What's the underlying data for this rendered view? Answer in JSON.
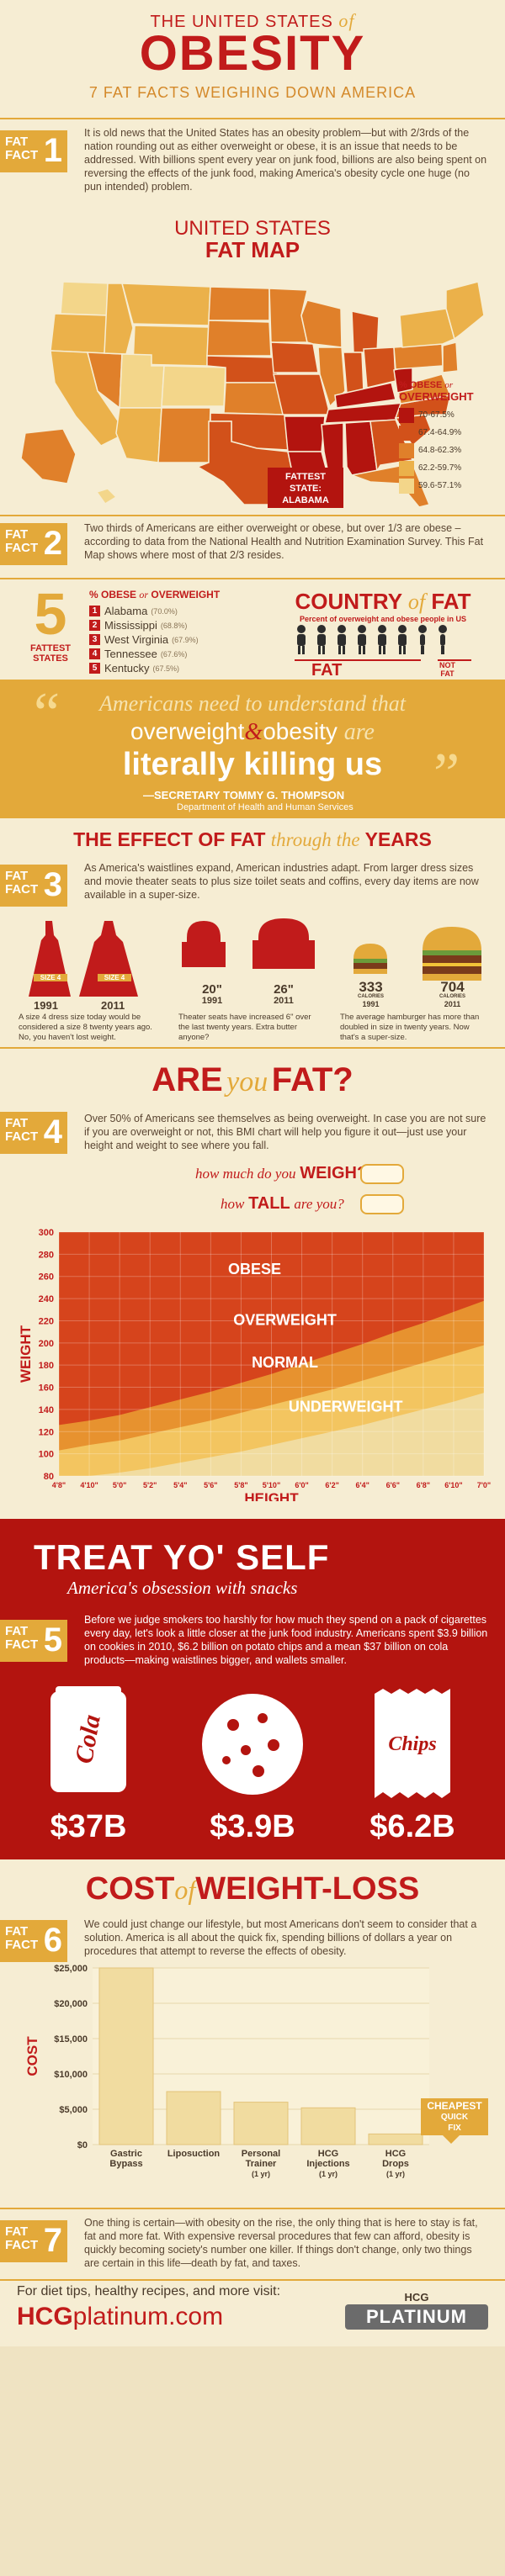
{
  "header": {
    "title_top": "THE UNITED STATES",
    "title_of": "of",
    "title_main": "OBESITY",
    "subtitle": "7 FAT FACTS WEIGHING DOWN AMERICA"
  },
  "fact_label": "FAT",
  "fact_label2": "FACT",
  "facts": [
    {
      "n": "1",
      "text": "It is old news that the United States has an obesity problem—but with 2/3rds of the nation rounding out as either overweight or obese, it is an issue that needs to be addressed. With billions spent every year on junk food, billions are also being spent on reversing the effects of the junk food, making America's obesity cycle one huge (no pun intended) problem."
    },
    {
      "n": "2",
      "text": "Two thirds of Americans are either overweight or obese, but over 1/3 are obese – according to data from the National Health and Nutrition Examination Survey. This Fat Map shows where most of that 2/3 resides."
    },
    {
      "n": "3",
      "text": "As America's waistlines expand, American industries adapt. From larger dress sizes and movie theater seats to plus size toilet seats and coffins, every day items are now available in a super-size."
    },
    {
      "n": "4",
      "text": "Over 50% of Americans see themselves as being overweight. In case you are not sure if you are overweight or not, this BMI chart will help you figure it out—just use your height and weight to see where you fall."
    },
    {
      "n": "5",
      "text": "Before we judge smokers too harshly for how much they spend on a pack of cigarettes every day, let's look a little closer at the junk food industry. Americans spent $3.9 billion on cookies in 2010, $6.2 billion on potato chips and a mean $37 billion on cola products—making waistlines bigger, and wallets smaller."
    },
    {
      "n": "6",
      "text": "We could just change our lifestyle, but most Americans don't seem to consider that a solution. America is all about the quick fix, spending billions of dollars a year on procedures that attempt to reverse the effects of obesity."
    },
    {
      "n": "7",
      "text": "One thing is certain—with obesity on the rise, the only thing that is here to stay is fat, fat and more fat. With expensive reversal procedures that few can afford, obesity is quickly becoming society's number one killer. If things don't change, only two things are certain in this life—death by fat, and taxes."
    }
  ],
  "map": {
    "title1": "UNITED STATES",
    "title2": "FAT MAP",
    "legend_title_pct": "% OBESE",
    "legend_title_or": "or",
    "legend_title_ow": "OVERWEIGHT",
    "legend": [
      {
        "label": "70-67.5%",
        "color": "#b3140f"
      },
      {
        "label": "67.4-64.9%",
        "color": "#d2511a"
      },
      {
        "label": "64.8-62.3%",
        "color": "#e0802a"
      },
      {
        "label": "62.2-59.7%",
        "color": "#ebb14a"
      },
      {
        "label": "59.6-57.1%",
        "color": "#f3d68a"
      }
    ],
    "fattest1": "FATTEST",
    "fattest2": "STATE:",
    "fattest3": "ALABAMA"
  },
  "fattest_states": {
    "big_number": "5",
    "label1": "FATTEST",
    "label2": "STATES",
    "header_pct": "% OBESE",
    "header_or": "or",
    "header_ow": "OVERWEIGHT",
    "items": [
      {
        "rank": "1",
        "name": "Alabama",
        "pct": "(70.0%)"
      },
      {
        "rank": "2",
        "name": "Mississippi",
        "pct": "(68.8%)"
      },
      {
        "rank": "3",
        "name": "West Virginia",
        "pct": "(67.9%)"
      },
      {
        "rank": "4",
        "name": "Tennessee",
        "pct": "(67.6%)"
      },
      {
        "rank": "5",
        "name": "Kentucky",
        "pct": "(67.5%)"
      }
    ],
    "country_title1": "COUNTRY",
    "country_title2": "of",
    "country_title3": "FAT",
    "country_sub": "Percent of overweight and obese people in US",
    "fat_label": "FAT",
    "notfat_label1": "NOT",
    "notfat_label2": "FAT"
  },
  "quote": {
    "line1": "Americans need to understand that",
    "line2a": "overweight",
    "line2b": "&",
    "line2c": "obesity",
    "line2d": "are",
    "line3": "literally killing us",
    "author": "—SECRETARY TOMMY G. THOMPSON",
    "dept": "Department of Health and Human Services"
  },
  "years": {
    "title1": "THE EFFECT OF FAT",
    "title2": "through the",
    "title3": "YEARS",
    "size1": "SIZE 4",
    "year1": "1991",
    "size2": "SIZE 4",
    "year2": "2011",
    "seat1": "20\"",
    "seat1y": "1991",
    "seat2": "26\"",
    "seat2y": "2011",
    "cal1": "333",
    "cal1l": "CALORIES",
    "cal1y": "1991",
    "cal2": "704",
    "cal2l": "CALORIES",
    "cal2y": "2011",
    "cap1": "A size 4 dress size today would be considered a size 8 twenty years ago. No, you haven't lost weight.",
    "cap2": "Theater seats have increased 6\" over the last twenty years. Extra butter anyone?",
    "cap3": "The average hamburger has more than doubled in size in twenty years. Now that's a super-size."
  },
  "bmi": {
    "are": "ARE",
    "you": "you",
    "fat": "FAT?",
    "q1a": "how much do you",
    "q1b": "WEIGH?",
    "q2a": "how",
    "q2b": "TALL",
    "q2c": "are you?"
  },
  "chart_data": [
    {
      "type": "area",
      "title": "",
      "ylabel": "WEIGHT",
      "xlabel": "HEIGHT",
      "ylim": [
        80,
        300
      ],
      "yticks": [
        "300",
        "280",
        "260",
        "240",
        "220",
        "200",
        "180",
        "160",
        "140",
        "120",
        "100",
        "80"
      ],
      "x": [
        "4'8\"",
        "4'10\"",
        "5'0\"",
        "5'2\"",
        "5'4\"",
        "5'6\"",
        "5'8\"",
        "5'10\"",
        "6'0\"",
        "6'2\"",
        "6'4\"",
        "6'6\"",
        "6'8\"",
        "6'10\"",
        "7'0\""
      ],
      "series": [
        {
          "name": "UNDERWEIGHT",
          "color": "#f1dca0",
          "values": [
            80,
            80,
            83,
            87,
            92,
            97,
            102,
            108,
            114,
            120,
            126,
            133,
            140,
            147,
            155
          ]
        },
        {
          "name": "NORMAL",
          "color": "#f3c560",
          "values": [
            103,
            108,
            112,
            118,
            124,
            130,
            137,
            144,
            151,
            158,
            166,
            174,
            182,
            190,
            198
          ]
        },
        {
          "name": "OVERWEIGHT",
          "color": "#e7922f",
          "values": [
            126,
            130,
            135,
            142,
            149,
            156,
            164,
            172,
            181,
            190,
            199,
            209,
            218,
            228,
            238
          ]
        },
        {
          "name": "OBESE",
          "color": "#d6441c",
          "values": [
            300,
            300,
            300,
            300,
            300,
            300,
            300,
            300,
            300,
            300,
            300,
            300,
            300,
            300,
            300
          ]
        }
      ]
    },
    {
      "type": "bar",
      "title": "",
      "ylabel": "COST",
      "xlabel": "",
      "ylim": [
        0,
        25000
      ],
      "yticks": [
        "$25,000",
        "$20,000",
        "$15,000",
        "$10,000",
        "$5,000",
        "$0"
      ],
      "categories": [
        "Gastric Bypass",
        "Liposuction",
        "Personal Trainer (1 yr)",
        "HCG Injections (1 yr)",
        "HCG Drops (1 yr)"
      ],
      "values": [
        25000,
        7500,
        6000,
        5200,
        1500
      ]
    }
  ],
  "snacks": {
    "title": "TREAT YO' SELF",
    "subtitle": "America's obsession with snacks",
    "cola": "Cola",
    "chips": "Chips",
    "v1": "$37B",
    "v2": "$3.9B",
    "v3": "$6.2B"
  },
  "cost": {
    "title1": "COST",
    "title2": "of",
    "title3": "WEIGHT-LOSS",
    "cheapest1": "CHEAPEST",
    "cheapest2": "QUICK",
    "cheapest3": "FIX",
    "labels": [
      {
        "l1": "Gastric",
        "l2": "Bypass",
        "l3": ""
      },
      {
        "l1": "Liposuction",
        "l2": "",
        "l3": ""
      },
      {
        "l1": "Personal",
        "l2": "Trainer",
        "l3": "(1 yr)"
      },
      {
        "l1": "HCG",
        "l2": "Injections",
        "l3": "(1 yr)"
      },
      {
        "l1": "HCG",
        "l2": "Drops",
        "l3": "(1 yr)"
      }
    ]
  },
  "footer": {
    "line1": "For diet tips, healthy recipes, and more visit:",
    "brand_a": "HCG",
    "brand_b": "platinum.com",
    "logo_top": "HCG",
    "logo_bottom": "PLATINUM"
  },
  "colors": {
    "accent": "#e3a93a",
    "red": "#c11b1b",
    "bg": "#f6edd3"
  }
}
